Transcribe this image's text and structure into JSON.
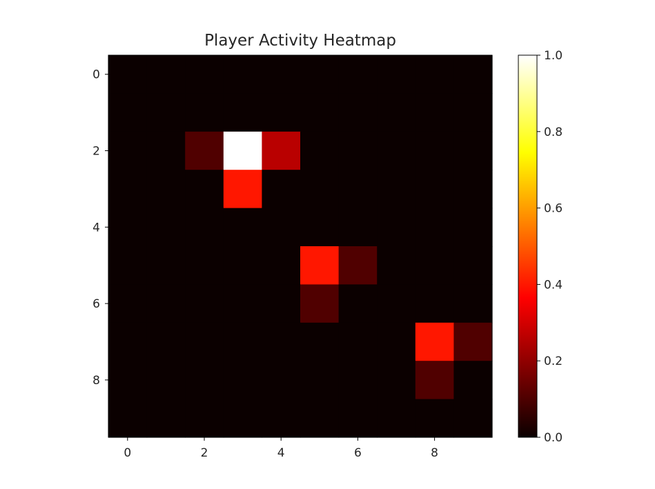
{
  "chart_data": {
    "type": "heatmap",
    "title": "Player Activity Heatmap",
    "xlabel": "",
    "ylabel": "",
    "colormap": "hot",
    "x_ticks": [
      0,
      2,
      4,
      6,
      8
    ],
    "y_ticks": [
      0,
      2,
      4,
      6,
      8
    ],
    "colorbar": {
      "range": [
        0.0,
        1.0
      ],
      "ticks": [
        0.0,
        0.2,
        0.4,
        0.6,
        0.8,
        1.0
      ],
      "tick_labels": [
        "0.0",
        "0.2",
        "0.4",
        "0.6",
        "0.8",
        "1.0"
      ]
    },
    "values": [
      [
        0,
        0,
        0,
        0,
        0,
        0,
        0,
        0,
        0,
        0
      ],
      [
        0,
        0,
        0,
        0,
        0,
        0,
        0,
        0,
        0,
        0
      ],
      [
        0,
        0,
        0.1,
        1.0,
        0.25,
        0,
        0,
        0,
        0,
        0
      ],
      [
        0,
        0,
        0,
        0.4,
        0,
        0,
        0,
        0,
        0,
        0
      ],
      [
        0,
        0,
        0,
        0,
        0,
        0,
        0,
        0,
        0,
        0
      ],
      [
        0,
        0,
        0,
        0,
        0,
        0.4,
        0.1,
        0,
        0,
        0
      ],
      [
        0,
        0,
        0,
        0,
        0,
        0.1,
        0,
        0,
        0,
        0
      ],
      [
        0,
        0,
        0,
        0,
        0,
        0,
        0,
        0,
        0.4,
        0.1
      ],
      [
        0,
        0,
        0,
        0,
        0,
        0,
        0,
        0,
        0.1,
        0
      ],
      [
        0,
        0,
        0,
        0,
        0,
        0,
        0,
        0,
        0,
        0
      ]
    ]
  }
}
